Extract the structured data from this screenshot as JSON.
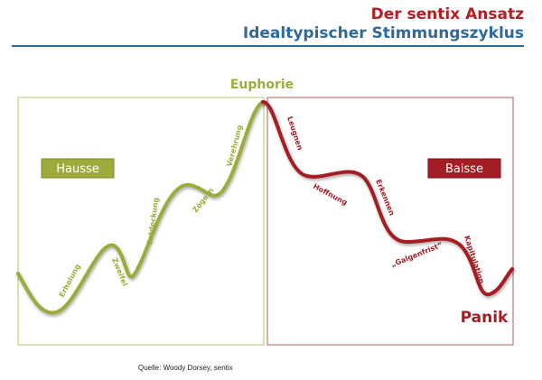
{
  "header": {
    "title": "Der sentix Ansatz",
    "subtitle": "Idealtypischer Stimmungszyklus"
  },
  "diagram": {
    "peak_label": "Euphorie",
    "trough_label": "Panik",
    "hausse_label": "Hausse",
    "baisse_label": "Baisse",
    "rising_phases": [
      "Erholung",
      "Zweifel",
      "Entdeckung",
      "Zögern",
      "Verehrung"
    ],
    "falling_phases": [
      "Leugnen",
      "Hoffnung",
      "Erkennen",
      "„Galgenfrist“",
      "Kapitulation"
    ]
  },
  "footer": {
    "source": "Quelle: Woody Dorsey, sentix"
  },
  "colors": {
    "hausse": "#9eab3a",
    "baisse": "#a51d24",
    "title_red": "#b32024",
    "title_blue": "#2e6a9a"
  }
}
